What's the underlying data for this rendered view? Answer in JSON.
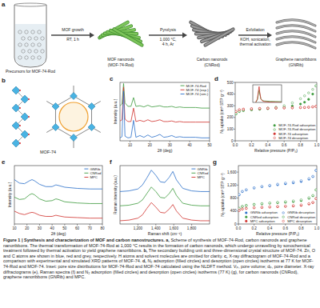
{
  "scheme": {
    "panel": "a",
    "precursor": "Precursors for MOF-74-Rod",
    "steps": [
      {
        "lines": [
          "MOF growth",
          "RT, 1 h"
        ]
      },
      {
        "lines": [
          "Pyrolysis",
          "1,000 °C,",
          "4 h, Ar"
        ]
      },
      {
        "lines": [
          "Exfoliation",
          "KOH, sonication,",
          "thermal activation"
        ]
      }
    ],
    "products": [
      {
        "lines": [
          "MOF nanorods",
          "(MOF-74-Rod)"
        ]
      },
      {
        "lines": [
          "Carbon nanorods",
          "(CNRod)"
        ]
      },
      {
        "lines": [
          "Graphene nanoribbons",
          "(GNRib)"
        ]
      }
    ]
  },
  "structure": {
    "panel": "b",
    "label": "MOF-74"
  },
  "chart_data": [
    {
      "type": "line",
      "panel": "c",
      "x_label": "2θ (deg)",
      "y_label": "Intensity (a.u.)",
      "tick_labels": "x",
      "xlim": [
        5,
        50
      ],
      "xticks": [
        10,
        20,
        30,
        40,
        50
      ],
      "ylim": [
        0,
        10
      ],
      "legend": "upper right",
      "x": [
        5,
        6,
        6.8,
        7.5,
        9,
        10.5,
        11.8,
        13,
        15,
        17,
        19,
        21,
        23,
        25,
        27,
        29,
        31,
        33,
        35,
        37,
        40,
        43,
        46,
        50
      ],
      "series": [
        {
          "name": "MOF-74-Rod",
          "color": "#3c9a3c",
          "line_style": "solid",
          "values": [
            6.0,
            6.3,
            9.8,
            6.5,
            5.9,
            5.9,
            7.4,
            5.9,
            6.0,
            5.8,
            6.1,
            5.8,
            5.9,
            6.0,
            5.8,
            5.8,
            5.9,
            5.7,
            5.8,
            5.7,
            5.7,
            5.7,
            5.6,
            5.6
          ]
        },
        {
          "name": "MOF-74 (exp.)",
          "color": "#d0312d",
          "line_style": "solid",
          "values": [
            3.4,
            3.6,
            9.2,
            3.7,
            3.3,
            3.3,
            5.6,
            3.3,
            3.5,
            3.3,
            3.6,
            3.3,
            3.4,
            3.6,
            3.3,
            3.3,
            3.4,
            3.2,
            3.3,
            3.2,
            3.2,
            3.2,
            3.2,
            3.2
          ]
        },
        {
          "name": "MOF-74 (sim.)",
          "color": "#2a6fc9",
          "line_style": "solid",
          "values": [
            0.5,
            0.7,
            8.5,
            0.8,
            0.5,
            0.6,
            3.5,
            0.6,
            0.9,
            0.6,
            1.0,
            0.6,
            0.8,
            1.1,
            0.6,
            0.7,
            0.9,
            0.6,
            0.7,
            0.6,
            0.6,
            0.6,
            0.5,
            0.5
          ]
        }
      ]
    },
    {
      "type": "scatter",
      "panel": "d",
      "x_label": "Relative pressure (P/P₀)",
      "y_label": "N₂ uptake (cm³ STP g⁻¹)",
      "xlim": [
        0,
        1
      ],
      "xticks": [
        {
          "value": 0,
          "label": "0.0"
        },
        0.2,
        0.4,
        0.6,
        0.8,
        {
          "value": 1,
          "label": "1.0"
        }
      ],
      "ylim": [
        0,
        500
      ],
      "yticks": [
        0,
        100,
        200,
        300,
        400,
        500
      ],
      "legend": "lower right",
      "x": [
        0.01,
        0.05,
        0.1,
        0.2,
        0.3,
        0.4,
        0.5,
        0.6,
        0.7,
        0.8,
        0.85,
        0.9,
        0.95,
        0.99
      ],
      "series": [
        {
          "name": "MOF-74-Rod adsorption",
          "color": "#3c9a3c",
          "marker": "filled-circle",
          "values": [
            230,
            250,
            258,
            265,
            270,
            275,
            280,
            288,
            298,
            315,
            330,
            355,
            400,
            470
          ]
        },
        {
          "name": "MOF-74-Rod desorption",
          "color": "#3c9a3c",
          "marker": "open-circle",
          "values": [
            232,
            252,
            260,
            268,
            274,
            280,
            288,
            300,
            325,
            360,
            385,
            410,
            440,
            470
          ]
        },
        {
          "name": "MOF-74 adsorption",
          "color": "#d0312d",
          "marker": "filled-circle",
          "values": [
            250,
            265,
            270,
            274,
            276,
            278,
            280,
            281,
            282,
            284,
            285,
            287,
            290,
            295
          ]
        },
        {
          "name": "MOF-74 desorption",
          "color": "#d0312d",
          "marker": "open-circle",
          "values": [
            251,
            266,
            271,
            275,
            277,
            279,
            281,
            282,
            283,
            285,
            286,
            288,
            291,
            295
          ]
        }
      ]
    },
    {
      "type": "line",
      "tick_labels": false,
      "xlim": [
        0,
        5
      ],
      "ylim": [
        0,
        1
      ],
      "x": [
        0.5,
        0.8,
        1.0,
        1.1,
        1.2,
        1.4,
        1.7,
        2,
        3,
        4,
        5
      ],
      "series": [
        {
          "color": "#3c9a3c",
          "line_style": "solid",
          "values": [
            0,
            0.15,
            0.55,
            0.7,
            0.5,
            0.2,
            0.1,
            0.08,
            0.06,
            0.05,
            0.04
          ]
        },
        {
          "color": "#d0312d",
          "line_style": "solid",
          "values": [
            0,
            0.2,
            0.7,
            0.9,
            0.6,
            0.2,
            0.08,
            0.05,
            0.02,
            0.01,
            0
          ]
        }
      ]
    },
    {
      "type": "line",
      "panel": "e",
      "x_label": "2θ (deg)",
      "y_label": "Intensity (a.u.)",
      "tick_labels": "x",
      "xlim": [
        10,
        80
      ],
      "xticks": [
        10,
        20,
        30,
        40,
        50,
        60,
        70,
        80
      ],
      "ylim": [
        0,
        10
      ],
      "legend": "upper right",
      "x": [
        10,
        14,
        18,
        22,
        24,
        26,
        30,
        35,
        40,
        43,
        45,
        50,
        60,
        70,
        80
      ],
      "series": [
        {
          "name": "GNRib",
          "color": "#2a6fc9",
          "line_style": "solid",
          "values": [
            7.6,
            7.0,
            6.9,
            7.4,
            7.6,
            7.4,
            6.8,
            6.4,
            6.4,
            6.7,
            6.6,
            6.3,
            6.1,
            6.0,
            6.0
          ]
        },
        {
          "name": "CNRod",
          "color": "#3c9a3c",
          "line_style": "solid",
          "values": [
            4.6,
            4.2,
            4.3,
            5.0,
            5.2,
            5.0,
            4.3,
            3.9,
            4.0,
            4.3,
            4.2,
            3.8,
            3.6,
            3.5,
            3.5
          ]
        },
        {
          "name": "MPC",
          "color": "#d0312d",
          "line_style": "solid",
          "values": [
            2.2,
            1.8,
            1.6,
            1.9,
            2.0,
            1.9,
            1.5,
            1.3,
            1.3,
            1.5,
            1.4,
            1.2,
            1.1,
            1.0,
            1.0
          ]
        }
      ]
    },
    {
      "type": "line",
      "panel": "f",
      "x_label": "Raman shift (cm⁻¹)",
      "y_label": "Raman intensity (a.u.)",
      "tick_labels": "x",
      "xlim": [
        1000,
        2000
      ],
      "xticks": [
        {
          "value": 1200,
          "label": "1,200"
        },
        {
          "value": 1400,
          "label": "1,400"
        },
        {
          "value": 1600,
          "label": "1,600"
        },
        {
          "value": 1800,
          "label": "1,800"
        }
      ],
      "ylim": [
        0,
        9
      ],
      "legend": "upper right",
      "x": [
        1000,
        1100,
        1200,
        1250,
        1300,
        1350,
        1400,
        1450,
        1500,
        1550,
        1590,
        1630,
        1700,
        1800,
        1900,
        2000
      ],
      "series": [
        {
          "name": "GNRib",
          "color": "#2a6fc9",
          "line_style": "solid",
          "values": [
            5.0,
            5.1,
            5.4,
            6.0,
            7.1,
            8.3,
            7.5,
            6.5,
            6.4,
            7.2,
            8.1,
            6.8,
            5.5,
            5.1,
            5.0,
            5.0
          ]
        },
        {
          "name": "CNRod",
          "color": "#3c9a3c",
          "line_style": "solid",
          "values": [
            2.8,
            2.9,
            3.2,
            3.7,
            4.7,
            5.7,
            5.0,
            4.1,
            4.0,
            4.7,
            5.5,
            4.4,
            3.2,
            2.9,
            2.8,
            2.8
          ]
        },
        {
          "name": "MPC",
          "color": "#d0312d",
          "line_style": "solid",
          "values": [
            0.5,
            0.6,
            0.9,
            1.4,
            2.4,
            3.3,
            2.6,
            1.8,
            1.7,
            2.3,
            3.0,
            2.0,
            0.9,
            0.6,
            0.5,
            0.5
          ]
        }
      ]
    },
    {
      "type": "scatter",
      "panel": "g",
      "x_label": "Relative pressure (P/P₀)",
      "y_label": "N₂ uptake (cm³ STP g⁻¹)",
      "xlim": [
        0,
        1
      ],
      "xticks": [
        {
          "value": 0,
          "label": "0.0"
        },
        0.2,
        0.4,
        0.6,
        0.8,
        {
          "value": 1,
          "label": "1.0"
        }
      ],
      "ylim": [
        0,
        1800
      ],
      "yticks": [
        0,
        400,
        800,
        {
          "value": 1200,
          "label": "1,200"
        },
        {
          "value": 1600,
          "label": "1,600"
        }
      ],
      "legend": "lower right",
      "x": [
        0.01,
        0.05,
        0.1,
        0.2,
        0.3,
        0.4,
        0.5,
        0.6,
        0.7,
        0.8,
        0.9,
        0.95,
        0.99
      ],
      "series": [
        {
          "name": "GNRib adsorption",
          "color": "#2a6fc9",
          "marker": "filled-circle",
          "values": [
            900,
            1000,
            1050,
            1110,
            1150,
            1180,
            1210,
            1240,
            1270,
            1310,
            1380,
            1460,
            1650
          ]
        },
        {
          "name": "GNRib desorption",
          "color": "#2a6fc9",
          "marker": "open-circle",
          "values": [
            905,
            1005,
            1055,
            1115,
            1158,
            1192,
            1228,
            1262,
            1295,
            1335,
            1400,
            1470,
            1650
          ]
        },
        {
          "name": "CNRod adsorption",
          "color": "#3c9a3c",
          "marker": "filled-circle",
          "values": [
            480,
            540,
            570,
            600,
            620,
            640,
            655,
            670,
            690,
            720,
            790,
            870,
            1050
          ]
        },
        {
          "name": "CNRod desorption",
          "color": "#3c9a3c",
          "marker": "open-circle",
          "values": [
            485,
            545,
            575,
            605,
            628,
            650,
            668,
            688,
            712,
            745,
            810,
            880,
            1050
          ]
        },
        {
          "name": "MPC adsorption",
          "color": "#d0312d",
          "marker": "filled-circle",
          "values": [
            420,
            460,
            480,
            500,
            512,
            522,
            532,
            542,
            555,
            575,
            615,
            660,
            780
          ]
        },
        {
          "name": "MPC desorption",
          "color": "#d0312d",
          "marker": "open-circle",
          "values": [
            422,
            462,
            482,
            503,
            516,
            528,
            540,
            552,
            568,
            590,
            628,
            670,
            780
          ]
        }
      ]
    }
  ],
  "caption": {
    "title": "Figure 1 | Synthesis and characterization of MOF and carbon nanostructures.",
    "parts": [
      {
        "label": "a,",
        "text": "Scheme of synthesis of MOF-74-Rod, carbon nanorods and graphene nanoribbons. The thermal transformation of MOF-74-Rod at 1,000 °C results in the formation of carbon nanorods, which undergo unravelling by sonochemical treatment followed by thermal activation to yield graphene nanoribbons."
      },
      {
        "label": "b,",
        "text": "The secondary building unit and three-dimensional crystal structure of MOF-74. Zn, O and C atoms are shown in blue, red and grey, respectively. H atoms and solvent molecules are omitted for clarity."
      },
      {
        "label": "c,",
        "text": "X-ray diffractogram of MOF-74-Rod and a comparison with experimental and simulated XRD patterns of MOF-74."
      },
      {
        "label": "d,",
        "text": "N₂ adsorption (filled circles) and desorption (open circles) isotherms at 77 K for MOF-74-Rod and MOF-74. Inset: pore size distributions for MOF-74-Rod and MOF-74 calculated using the NLDFT method. Vₚ, pore volume; dₚ, pore diameter."
      },
      {
        "text": "X-ray diffractograms (e), Raman spectra (f) and N₂ adsorption (filled circles) and desorption (open circles) isotherms (77 K) (g), for carbon nanorods (CNRod), graphene nanoribbons (GNRib) and MPC."
      }
    ]
  }
}
